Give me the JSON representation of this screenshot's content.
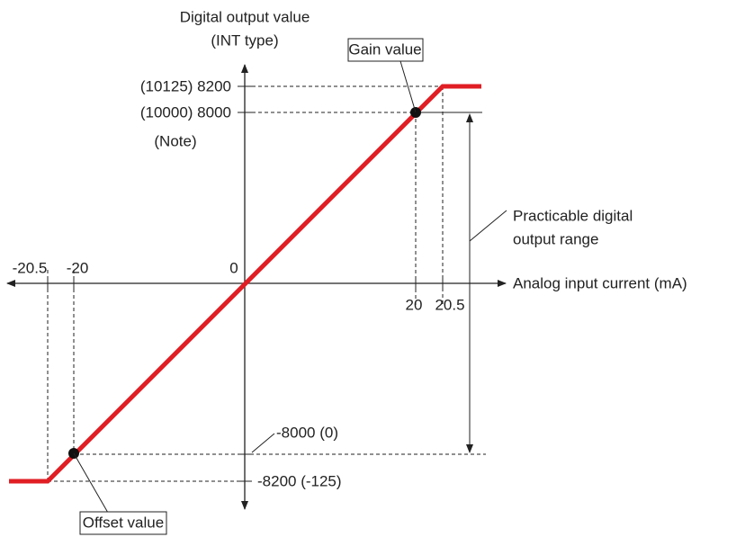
{
  "y_axis": {
    "label": [
      "Digital output value",
      "(INT type)"
    ],
    "ticks": [
      "(10125) 8200",
      "(10000) 8000",
      "-8000 (0)",
      "-8200 (-125)"
    ],
    "note": "(Note)"
  },
  "x_axis": {
    "label": "Analog input current (mA)",
    "ticks": [
      "-20.5",
      "-20",
      "20",
      "20.5"
    ],
    "origin": "0"
  },
  "callouts": {
    "gain": "Gain value",
    "offset": "Offset value",
    "range": [
      "Practicable digital",
      "output range"
    ]
  }
}
